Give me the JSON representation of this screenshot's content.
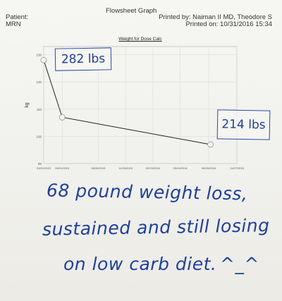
{
  "header": {
    "title": "Flowsheet Graph",
    "patient_label": "Patient:",
    "mrn_label": "MRN",
    "printed_by": "Printed by: Naiman II MD, Theodore S",
    "printed_on": "Printed on: 10/31/2016 15:34"
  },
  "annotations": {
    "start_weight": "282 lbs",
    "end_weight": "214 lbs",
    "note_line_1": "68 pound weight loss,",
    "note_line_2": "sustained and still losing",
    "note_line_3": "on low carb diet.",
    "smiley": "^_^"
  },
  "colors": {
    "ink": "#1f3f9a",
    "series": "#222222"
  },
  "chart_data": {
    "type": "line",
    "title": "Weight for Dose Calc",
    "xlabel": "",
    "ylabel": "kg",
    "x_tick_labels": [
      "03/01/2015",
      "05/01/2015",
      "08/28/2015",
      "11/26/2015",
      "02/24/2016",
      "05/24/2016",
      "08/26/2016",
      "11/27/2016"
    ],
    "y_ticks": [
      90,
      100,
      110,
      120,
      130
    ],
    "ylim": [
      90,
      133
    ],
    "grid": true,
    "series": [
      {
        "x": [
          "03/01/2015",
          "05/01/2015",
          "09/01/2016"
        ],
        "y": [
          128,
          107,
          97
        ]
      }
    ]
  }
}
